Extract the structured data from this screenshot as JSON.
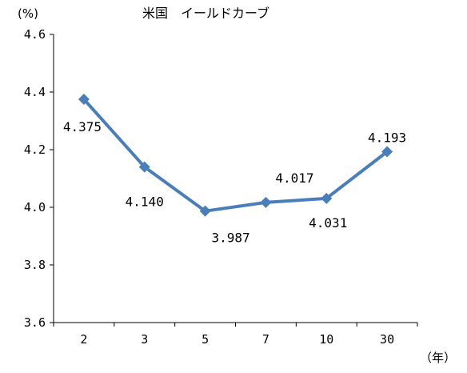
{
  "chart_data": {
    "type": "line",
    "title": "米国　イールドカーブ",
    "y_unit_label": "(%)",
    "x_unit_label": "（年）",
    "categories": [
      "2",
      "3",
      "5",
      "7",
      "10",
      "30"
    ],
    "series": [
      {
        "values": [
          4.375,
          4.14,
          3.987,
          4.017,
          4.031,
          4.193
        ]
      }
    ],
    "data_labels": [
      "4.375",
      "4.140",
      "3.987",
      "4.017",
      "4.031",
      "4.193"
    ],
    "y_ticks": [
      "4.6",
      "4.4",
      "4.2",
      "4.0",
      "3.8",
      "3.6"
    ],
    "ylim": [
      3.6,
      4.6
    ],
    "y_tick_values": [
      4.6,
      4.4,
      4.2,
      4.0,
      3.8,
      3.6
    ],
    "grid": false,
    "legend": "none",
    "marker": "diamond",
    "colors": {
      "series": "#4A7EBB",
      "axis": "#000000"
    }
  }
}
